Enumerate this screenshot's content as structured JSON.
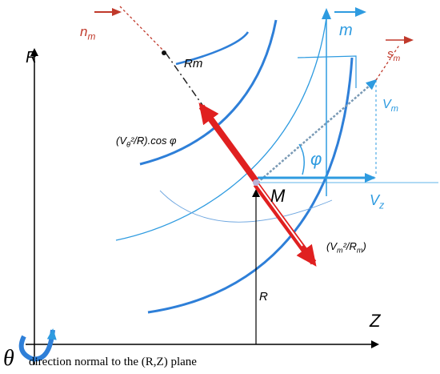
{
  "axes": {
    "r": "R",
    "z": "Z"
  },
  "vectors": {
    "nm": {
      "parts": [
        "n",
        "m"
      ]
    },
    "m": {
      "parts": [
        "m"
      ]
    },
    "sm": {
      "parts": [
        "s",
        "m"
      ]
    },
    "vm": {
      "parts": [
        "V",
        "m"
      ]
    },
    "vz": {
      "parts": [
        "V",
        "z"
      ]
    }
  },
  "labels": {
    "rm": "Rm",
    "point": "M",
    "angle": "φ",
    "radius": "R",
    "curvature_force": {
      "parts": [
        "(V",
        "θ",
        "²/R).cos φ"
      ]
    },
    "meridional_force": {
      "parts": [
        "(V",
        "m",
        "²/R",
        "m",
        ")"
      ]
    }
  },
  "footer": {
    "symbol": "θ",
    "text": "direction normal to the (R,Z) plane"
  }
}
